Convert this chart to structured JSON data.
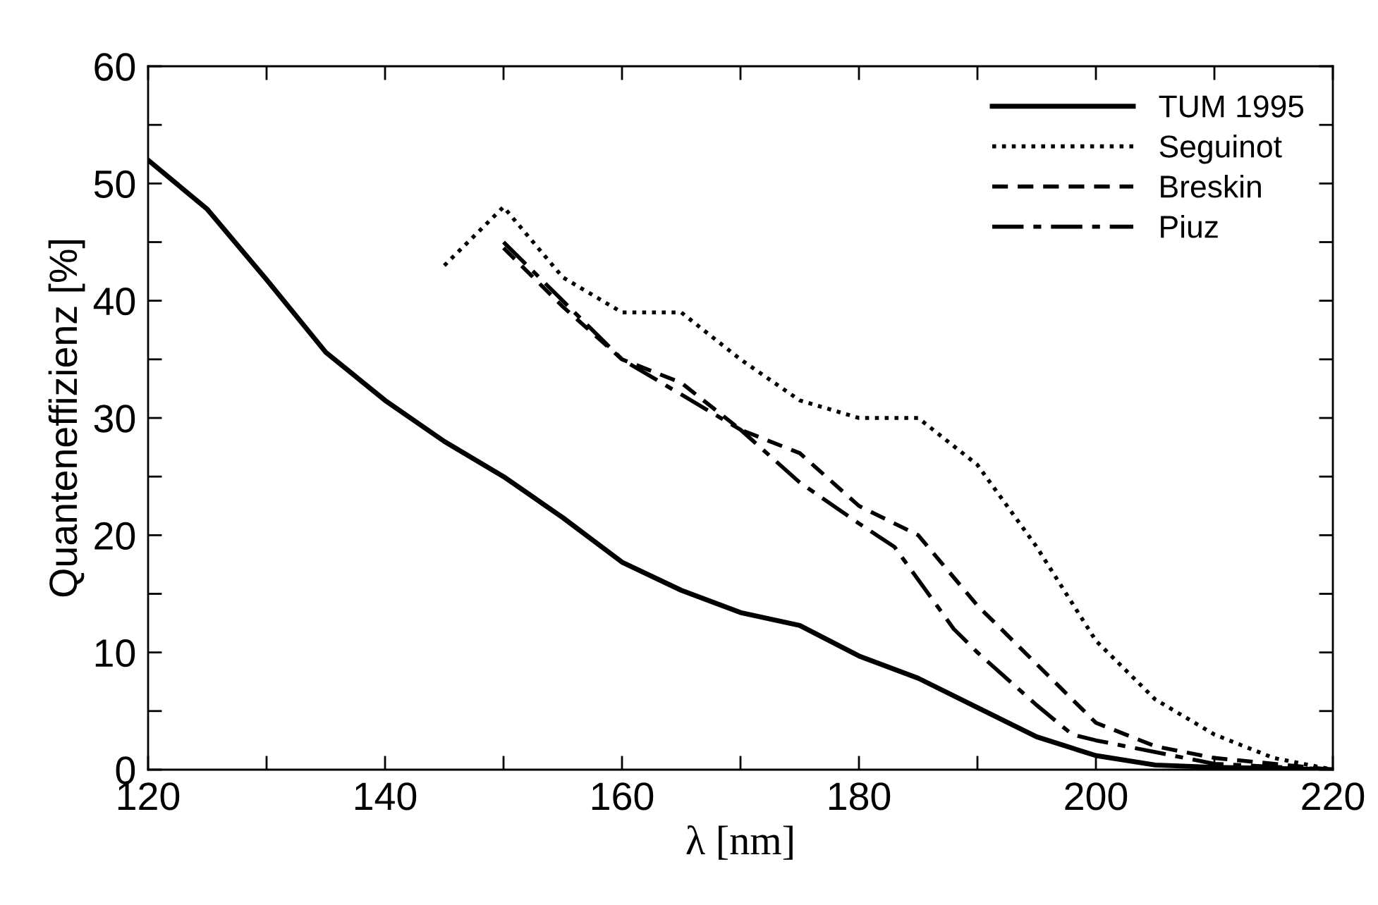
{
  "chart_data": {
    "type": "line",
    "xlabel": "λ [nm]",
    "ylabel": "Quanteneffizienz [%]",
    "xlim": [
      120,
      220
    ],
    "ylim": [
      0,
      60
    ],
    "xticks": [
      120,
      {
        "value": 130,
        "label": null
      },
      140,
      {
        "value": 150,
        "label": null
      },
      160,
      {
        "value": 170,
        "label": null
      },
      180,
      {
        "value": 190,
        "label": null
      },
      200,
      {
        "value": 210,
        "label": null
      },
      220
    ],
    "yticks": [
      0,
      {
        "value": 5,
        "label": null
      },
      10,
      {
        "value": 15,
        "label": null
      },
      20,
      {
        "value": 25,
        "label": null
      },
      30,
      {
        "value": 35,
        "label": null
      },
      40,
      {
        "value": 45,
        "label": null
      },
      50,
      {
        "value": 55,
        "label": null
      },
      60
    ],
    "grid": false,
    "legend": "top right",
    "marker": "none",
    "series": [
      {
        "name": "TUM 1995",
        "color": "#000000",
        "line_style": "solid",
        "x": [
          120,
          125,
          130,
          135,
          140,
          145,
          150,
          155,
          160,
          165,
          170,
          175,
          180,
          185,
          190,
          195,
          200,
          205,
          210,
          220
        ],
        "values": [
          52,
          47.8,
          41.8,
          35.6,
          31.5,
          28,
          25,
          21.5,
          17.7,
          15.3,
          13.4,
          12.3,
          9.7,
          7.8,
          5.3,
          2.8,
          1.2,
          0.4,
          0.2,
          0
        ]
      },
      {
        "name": "Seguinot",
        "color": "#000000",
        "line_style": "dotted",
        "x": [
          145,
          150,
          155,
          160,
          165,
          170,
          175,
          180,
          185,
          190,
          195,
          200,
          205,
          210,
          215,
          220
        ],
        "values": [
          43,
          48,
          42,
          39,
          39,
          35,
          31.5,
          30,
          30,
          26,
          19,
          11,
          6,
          3,
          1,
          0
        ]
      },
      {
        "name": "Breskin",
        "color": "#000000",
        "line_style": "dashed",
        "x": [
          150,
          155,
          160,
          165,
          170,
          175,
          180,
          185,
          190,
          195,
          200,
          205,
          210,
          220
        ],
        "values": [
          44.5,
          39.5,
          35,
          33,
          29,
          27,
          22.5,
          20,
          14,
          9,
          4,
          2,
          1,
          0
        ]
      },
      {
        "name": "Piuz",
        "color": "#000000",
        "line_style": "dashdot",
        "x": [
          150,
          155,
          160,
          165,
          170,
          175,
          180,
          183,
          188,
          190,
          195,
          198,
          200,
          205,
          210,
          220
        ],
        "values": [
          45,
          40,
          35,
          32,
          29,
          24.5,
          21,
          19,
          12,
          10,
          5.5,
          3,
          2.5,
          1.5,
          0.5,
          0
        ]
      }
    ]
  }
}
